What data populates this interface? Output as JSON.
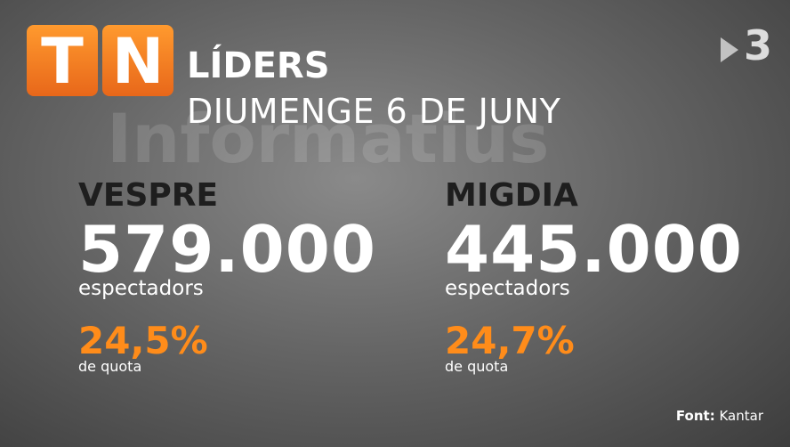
{
  "logo": {
    "letters": [
      "T",
      "N"
    ]
  },
  "channel": "3",
  "header": {
    "title": "LÍDERS",
    "date": "DIUMENGE 6 DE JUNY",
    "watermark": "Informatius"
  },
  "blocks": [
    {
      "name": "VESPRE",
      "viewers": "579.000",
      "viewers_label": "espectadors",
      "share": "24,5%",
      "share_label": "de quota"
    },
    {
      "name": "MIGDIA",
      "viewers": "445.000",
      "viewers_label": "espectadors",
      "share": "24,7%",
      "share_label": "de quota"
    }
  ],
  "source": {
    "label": "Font:",
    "value": "Kantar"
  }
}
